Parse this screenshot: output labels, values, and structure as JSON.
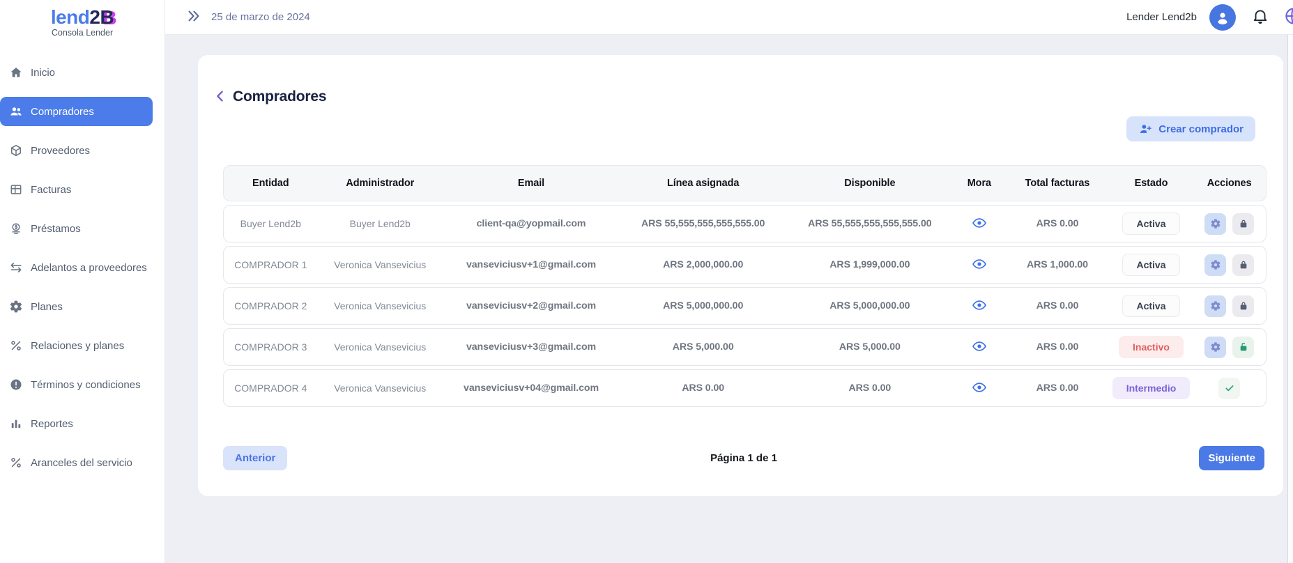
{
  "brand": {
    "logo_part_blue": "lend",
    "logo_part_dark": "2",
    "logo_part_accent": "B",
    "subtitle": "Consola Lender"
  },
  "topbar": {
    "collapse_icon": "double-chevron-right-icon",
    "date": "25 de marzo de 2024",
    "user_name": "Lender Lend2b",
    "avatar_icon": "person-icon",
    "bell_icon": "bell-icon",
    "globe_icon": "globe-icon"
  },
  "sidebar": {
    "items": [
      {
        "label": "Inicio",
        "icon": "home-icon",
        "active": false
      },
      {
        "label": "Compradores",
        "icon": "users-icon",
        "active": true
      },
      {
        "label": "Proveedores",
        "icon": "cube-icon",
        "active": false
      },
      {
        "label": "Facturas",
        "icon": "grid-icon",
        "active": false
      },
      {
        "label": "Préstamos",
        "icon": "coin-icon",
        "active": false
      },
      {
        "label": "Adelantos a proveedores",
        "icon": "swap-arrows-icon",
        "active": false
      },
      {
        "label": "Planes",
        "icon": "gear-icon",
        "active": false
      },
      {
        "label": "Relaciones y planes",
        "icon": "percent-icon",
        "active": false
      },
      {
        "label": "Términos y condiciones",
        "icon": "alert-circle-icon",
        "active": false
      },
      {
        "label": "Reportes",
        "icon": "bar-chart-icon",
        "active": false
      },
      {
        "label": "Aranceles del servicio",
        "icon": "percent-icon",
        "active": false
      }
    ]
  },
  "main": {
    "back_icon": "chevron-left-icon",
    "title": "Compradores",
    "create_button": {
      "label": "Crear comprador",
      "icon": "person-add-icon"
    },
    "table": {
      "columns": [
        "Entidad",
        "Administrador",
        "Email",
        "Línea asignada",
        "Disponible",
        "Mora",
        "Total facturas",
        "Estado",
        "Acciones"
      ],
      "rows": [
        {
          "entidad": "Buyer Lend2b",
          "administrador": "Buyer Lend2b",
          "email": "client-qa@yopmail.com",
          "linea_asignada": "ARS 55,555,555,555,555.00",
          "disponible": "ARS 55,555,555,555,555.00",
          "mora_icon": "eye-icon",
          "total_facturas": "ARS 0.00",
          "estado": {
            "label": "Activa",
            "variant": "activa"
          },
          "acciones": [
            {
              "icon": "gear-icon",
              "variant": "blue"
            },
            {
              "icon": "lock-icon",
              "variant": "gray"
            }
          ]
        },
        {
          "entidad": "COMPRADOR 1",
          "administrador": "Veronica Vansevicius",
          "email": "vanseviciusv+1@gmail.com",
          "linea_asignada": "ARS 2,000,000.00",
          "disponible": "ARS 1,999,000.00",
          "mora_icon": "eye-icon",
          "total_facturas": "ARS 1,000.00",
          "estado": {
            "label": "Activa",
            "variant": "activa"
          },
          "acciones": [
            {
              "icon": "gear-icon",
              "variant": "blue"
            },
            {
              "icon": "lock-icon",
              "variant": "gray"
            }
          ]
        },
        {
          "entidad": "COMPRADOR 2",
          "administrador": "Veronica Vansevicius",
          "email": "vanseviciusv+2@gmail.com",
          "linea_asignada": "ARS 5,000,000.00",
          "disponible": "ARS 5,000,000.00",
          "mora_icon": "eye-icon",
          "total_facturas": "ARS 0.00",
          "estado": {
            "label": "Activa",
            "variant": "activa"
          },
          "acciones": [
            {
              "icon": "gear-icon",
              "variant": "blue"
            },
            {
              "icon": "lock-icon",
              "variant": "gray"
            }
          ]
        },
        {
          "entidad": "COMPRADOR 3",
          "administrador": "Veronica Vansevicius",
          "email": "vanseviciusv+3@gmail.com",
          "linea_asignada": "ARS 5,000.00",
          "disponible": "ARS 5,000.00",
          "mora_icon": "eye-icon",
          "total_facturas": "ARS 0.00",
          "estado": {
            "label": "Inactivo",
            "variant": "inactivo"
          },
          "acciones": [
            {
              "icon": "gear-icon",
              "variant": "blue"
            },
            {
              "icon": "unlock-icon",
              "variant": "green"
            }
          ]
        },
        {
          "entidad": "COMPRADOR 4",
          "administrador": "Veronica Vansevicius",
          "email": "vanseviciusv+04@gmail.com",
          "linea_asignada": "ARS 0.00",
          "disponible": "ARS 0.00",
          "mora_icon": "eye-icon",
          "total_facturas": "ARS 0.00",
          "estado": {
            "label": "Intermedio",
            "variant": "intermedio"
          },
          "acciones": [
            {
              "icon": "check-icon",
              "variant": "greenlight"
            }
          ]
        }
      ]
    },
    "pagination": {
      "prev_label": "Anterior",
      "page_label": "Página 1 de 1",
      "next_label": "Siguiente"
    }
  },
  "colors": {
    "accent_blue": "#4b7ce9",
    "logo_blue": "#4a7cea",
    "logo_navy": "#232857",
    "logo_magenta": "#cc3df2",
    "eye_blue": "#3f71e8",
    "status_active_text": "#39404f",
    "status_inactive_red": "#df5f5f",
    "status_intermediate_purple": "#7a62d8",
    "action_green": "#259b72"
  }
}
